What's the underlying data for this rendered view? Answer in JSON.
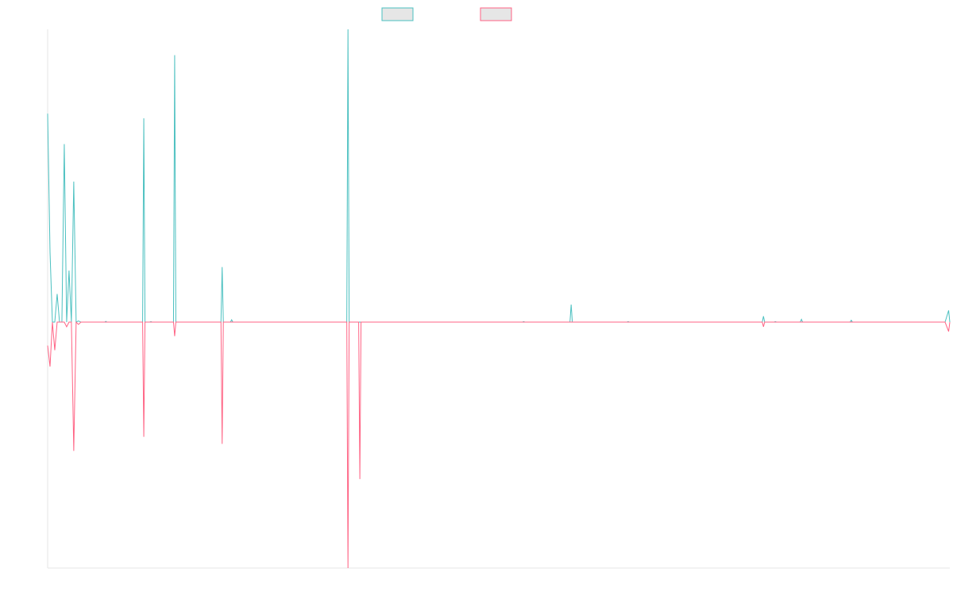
{
  "chart_data": {
    "type": "line",
    "title": "",
    "xlabel": "",
    "ylabel": "",
    "grid": false,
    "legend_position": "top-center",
    "x_range": [
      0,
      380
    ],
    "y_range": [
      -105,
      125
    ],
    "series": [
      {
        "color": "#4bc0c0",
        "legend_fill": "#e6e6e6",
        "points": [
          [
            0,
            89
          ],
          [
            1,
            30
          ],
          [
            2,
            0
          ],
          [
            3,
            0
          ],
          [
            4,
            12
          ],
          [
            5,
            0
          ],
          [
            6,
            0
          ],
          [
            7,
            76
          ],
          [
            8,
            0
          ],
          [
            9,
            22
          ],
          [
            10,
            0
          ],
          [
            11,
            60
          ],
          [
            12,
            0
          ],
          [
            13,
            0.5
          ],
          [
            14,
            0
          ],
          [
            24,
            0
          ],
          [
            24.5,
            0.3
          ],
          [
            25,
            0
          ],
          [
            40,
            0
          ],
          [
            40.5,
            87
          ],
          [
            41,
            0
          ],
          [
            43,
            0
          ],
          [
            43.5,
            0.2
          ],
          [
            44,
            0
          ],
          [
            53,
            0
          ],
          [
            53.5,
            114
          ],
          [
            54,
            0
          ],
          [
            73,
            0
          ],
          [
            73.5,
            23.5
          ],
          [
            74,
            0
          ],
          [
            77,
            0
          ],
          [
            77.5,
            1
          ],
          [
            78,
            0
          ],
          [
            126,
            0
          ],
          [
            126.5,
            125
          ],
          [
            127,
            0
          ],
          [
            200,
            0
          ],
          [
            200.5,
            0.2
          ],
          [
            201,
            0
          ],
          [
            220,
            0
          ],
          [
            220.5,
            7.5
          ],
          [
            221,
            0
          ],
          [
            244,
            0
          ],
          [
            244.5,
            0.2
          ],
          [
            245,
            0
          ],
          [
            301,
            0
          ],
          [
            301.5,
            2.5
          ],
          [
            302,
            0
          ],
          [
            306,
            0
          ],
          [
            306.5,
            0.2
          ],
          [
            307,
            0
          ],
          [
            317,
            0
          ],
          [
            317.5,
            1.2
          ],
          [
            318,
            0
          ],
          [
            338,
            0
          ],
          [
            338.5,
            0.8
          ],
          [
            339,
            0
          ],
          [
            377,
            0
          ],
          [
            378,
            0
          ],
          [
            379.5,
            5
          ],
          [
            380,
            0
          ]
        ]
      },
      {
        "color": "#ff6384",
        "legend_fill": "#e6e6e6",
        "points": [
          [
            0,
            -10
          ],
          [
            1,
            -19
          ],
          [
            2,
            0
          ],
          [
            3,
            -12
          ],
          [
            4,
            0
          ],
          [
            5,
            0
          ],
          [
            6,
            0
          ],
          [
            7,
            0
          ],
          [
            8,
            -2
          ],
          [
            9,
            0
          ],
          [
            10,
            0
          ],
          [
            11,
            -55
          ],
          [
            12,
            0
          ],
          [
            13,
            -1
          ],
          [
            14,
            0
          ],
          [
            40,
            0
          ],
          [
            40.5,
            -49
          ],
          [
            41,
            0
          ],
          [
            53,
            0
          ],
          [
            53.5,
            -6
          ],
          [
            54,
            0
          ],
          [
            73,
            0
          ],
          [
            73.5,
            -52
          ],
          [
            74,
            0
          ],
          [
            126,
            0
          ],
          [
            126.5,
            -105
          ],
          [
            127,
            0
          ],
          [
            131,
            0
          ],
          [
            131.5,
            -67
          ],
          [
            132,
            0
          ],
          [
            301,
            0
          ],
          [
            301.5,
            -2
          ],
          [
            302,
            0
          ],
          [
            378,
            0
          ],
          [
            379.5,
            -4
          ],
          [
            380,
            0
          ]
        ]
      }
    ]
  }
}
